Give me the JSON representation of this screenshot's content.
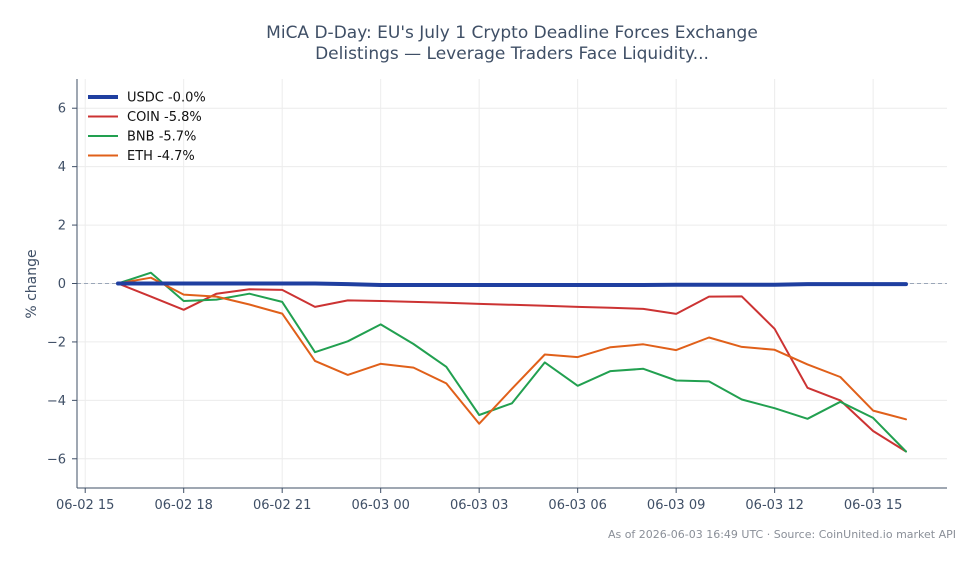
{
  "chart_data": {
    "type": "line",
    "title_lines": [
      "MiCA D-Day: EU's July 1 Crypto Deadline Forces Exchange",
      "Delistings — Leverage Traders Face Liquidity..."
    ],
    "xlabel": "",
    "ylabel": "% change",
    "ylim": [
      -7,
      7
    ],
    "yticks": [
      -6,
      -4,
      -2,
      0,
      2,
      4,
      6
    ],
    "xlim": [
      -0.25,
      26.25
    ],
    "xticks": [
      {
        "x": 0,
        "label": "06-02 15"
      },
      {
        "x": 3,
        "label": "06-02 18"
      },
      {
        "x": 6,
        "label": "06-02 21"
      },
      {
        "x": 9,
        "label": "06-03 00"
      },
      {
        "x": 12,
        "label": "06-03 03"
      },
      {
        "x": 15,
        "label": "06-03 06"
      },
      {
        "x": 18,
        "label": "06-03 09"
      },
      {
        "x": 21,
        "label": "06-03 12"
      },
      {
        "x": 24,
        "label": "06-03 15"
      }
    ],
    "grid": true,
    "zero_reference_line": true,
    "legend_position": "top-left",
    "x": [
      1,
      2,
      3,
      4,
      5,
      6,
      7,
      8,
      9,
      10,
      11,
      12,
      13,
      14,
      15,
      16,
      17,
      18,
      19,
      20,
      21,
      22,
      23,
      24,
      25
    ],
    "series": [
      {
        "name": "USDC -0.0%",
        "color": "#1f3fa0",
        "width": 4,
        "values": [
          0.0,
          0.0,
          0.0,
          0.0,
          0.0,
          0.0,
          0.0,
          -0.02,
          -0.05,
          -0.05,
          -0.05,
          -0.05,
          -0.05,
          -0.05,
          -0.05,
          -0.05,
          -0.05,
          -0.04,
          -0.04,
          -0.04,
          -0.04,
          -0.02,
          -0.02,
          -0.02,
          -0.02
        ]
      },
      {
        "name": "COIN -5.8%",
        "color": "#cc3333",
        "width": 2,
        "values": [
          0.0,
          -0.45,
          -0.9,
          -0.35,
          -0.2,
          -0.22,
          -0.8,
          -0.58,
          -0.6,
          -0.63,
          -0.66,
          -0.7,
          -0.73,
          -0.76,
          -0.8,
          -0.83,
          -0.87,
          -1.04,
          -0.45,
          -0.44,
          -1.55,
          -3.57,
          -4.0,
          -5.05,
          -5.75
        ]
      },
      {
        "name": "BNB -5.7%",
        "color": "#22a050",
        "width": 2,
        "values": [
          0.0,
          0.37,
          -0.6,
          -0.55,
          -0.35,
          -0.63,
          -2.35,
          -1.98,
          -1.4,
          -2.07,
          -2.85,
          -4.5,
          -4.1,
          -2.7,
          -3.5,
          -3.0,
          -2.92,
          -3.32,
          -3.35,
          -3.97,
          -4.27,
          -4.63,
          -4.05,
          -4.6,
          -5.75
        ]
      },
      {
        "name": "ETH -4.7%",
        "color": "#e0601a",
        "width": 2,
        "values": [
          0.0,
          0.2,
          -0.38,
          -0.45,
          -0.72,
          -1.03,
          -2.65,
          -3.13,
          -2.75,
          -2.88,
          -3.42,
          -4.8,
          -3.6,
          -2.43,
          -2.52,
          -2.18,
          -2.08,
          -2.28,
          -1.85,
          -2.17,
          -2.27,
          -2.77,
          -3.2,
          -4.35,
          -4.65
        ]
      }
    ],
    "footer": "As of 2026-06-03 16:49 UTC · Source: CoinUnited.io market API"
  }
}
